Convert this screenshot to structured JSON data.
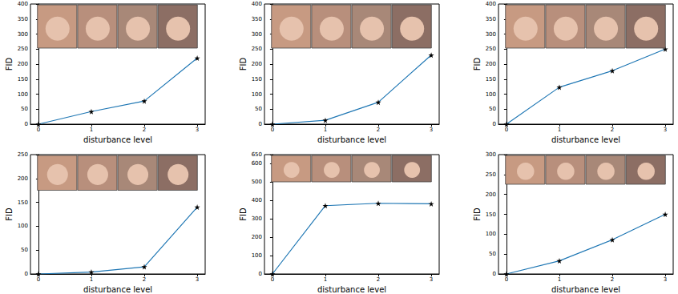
{
  "chart_data": [
    {
      "type": "line",
      "x": [
        0,
        1,
        2,
        3
      ],
      "values": [
        0,
        42,
        77,
        220
      ],
      "color": "#1f77b4",
      "marker": "star",
      "xlabel": "disturbance level",
      "ylabel": "FID",
      "xlim": [
        -0.15,
        3.15
      ],
      "xticks": [
        0,
        1,
        2,
        3
      ],
      "ylim": [
        0,
        400
      ],
      "yticks": [
        0,
        50,
        100,
        150,
        200,
        250,
        300,
        350,
        400
      ],
      "grid": false
    },
    {
      "type": "line",
      "x": [
        0,
        1,
        2,
        3
      ],
      "values": [
        0,
        13,
        73,
        230
      ],
      "color": "#1f77b4",
      "marker": "star",
      "xlabel": "disturbance level",
      "ylabel": "FID",
      "xlim": [
        -0.15,
        3.15
      ],
      "xticks": [
        0,
        1,
        2,
        3
      ],
      "ylim": [
        0,
        400
      ],
      "yticks": [
        0,
        50,
        100,
        150,
        200,
        250,
        300,
        350,
        400
      ],
      "grid": false
    },
    {
      "type": "line",
      "x": [
        0,
        1,
        2,
        3
      ],
      "values": [
        0,
        123,
        178,
        250
      ],
      "color": "#1f77b4",
      "marker": "star",
      "xlabel": "disturbance level",
      "ylabel": "FID",
      "xlim": [
        -0.15,
        3.15
      ],
      "xticks": [
        0,
        1,
        2,
        3
      ],
      "ylim": [
        0,
        400
      ],
      "yticks": [
        0,
        50,
        100,
        150,
        200,
        250,
        300,
        350,
        400
      ],
      "grid": false
    },
    {
      "type": "line",
      "x": [
        0,
        1,
        2,
        3
      ],
      "values": [
        0,
        4,
        15,
        140
      ],
      "color": "#1f77b4",
      "marker": "star",
      "xlabel": "disturbance level",
      "ylabel": "FID",
      "xlim": [
        -0.15,
        3.15
      ],
      "xticks": [
        0,
        1,
        2,
        3
      ],
      "ylim": [
        0,
        250
      ],
      "yticks": [
        0,
        50,
        100,
        150,
        200,
        250
      ],
      "grid": false
    },
    {
      "type": "line",
      "x": [
        0,
        1,
        2,
        3
      ],
      "values": [
        0,
        372,
        385,
        382
      ],
      "color": "#1f77b4",
      "marker": "star",
      "xlabel": "disturbance level",
      "ylabel": "FID",
      "xlim": [
        -0.15,
        3.15
      ],
      "xticks": [
        0,
        1,
        2,
        3
      ],
      "ylim": [
        0,
        650
      ],
      "yticks": [
        0,
        100,
        200,
        300,
        400,
        500,
        600
      ],
      "grid": false
    },
    {
      "type": "line",
      "x": [
        0,
        1,
        2,
        3
      ],
      "values": [
        0,
        33,
        86,
        150
      ],
      "color": "#1f77b4",
      "marker": "star",
      "xlabel": "disturbance level",
      "ylabel": "FID",
      "xlim": [
        -0.15,
        3.15
      ],
      "xticks": [
        0,
        1,
        2,
        3
      ],
      "ylim": [
        0,
        300
      ],
      "yticks": [
        0,
        50,
        100,
        150,
        200,
        250,
        300
      ],
      "grid": false
    }
  ]
}
